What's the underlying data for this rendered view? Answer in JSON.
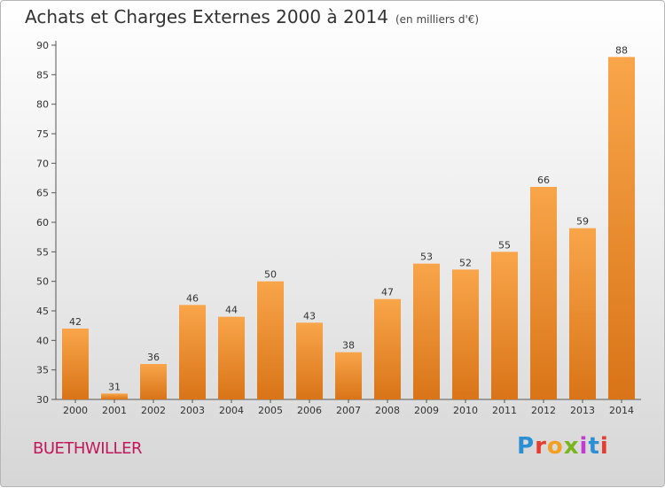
{
  "title": "Achats et Charges Externes 2000 à 2014",
  "subtitle": "(en milliers d'€)",
  "commune": "BUETHWILLER",
  "logo_text": "Proxiti",
  "logo_colors": [
    "#2b8fd6",
    "#e63b2e",
    "#f2a020",
    "#7ab51d",
    "#c23bd0",
    "#2b8fd6",
    "#e63b2e"
  ],
  "colors": {
    "bar_top": "#f9a54a",
    "bar_bottom": "#d97418",
    "commune": "#c2185b"
  },
  "chart_data": {
    "type": "bar",
    "categories": [
      "2000",
      "2001",
      "2002",
      "2003",
      "2004",
      "2005",
      "2006",
      "2007",
      "2008",
      "2009",
      "2010",
      "2011",
      "2012",
      "2013",
      "2014"
    ],
    "values": [
      42,
      31,
      36,
      46,
      44,
      50,
      43,
      38,
      47,
      53,
      52,
      55,
      66,
      59,
      88
    ],
    "ylim": [
      30,
      90
    ],
    "yticks": [
      30,
      35,
      40,
      45,
      50,
      55,
      60,
      65,
      70,
      75,
      80,
      85,
      90
    ],
    "grid": false,
    "data_labels": true
  }
}
